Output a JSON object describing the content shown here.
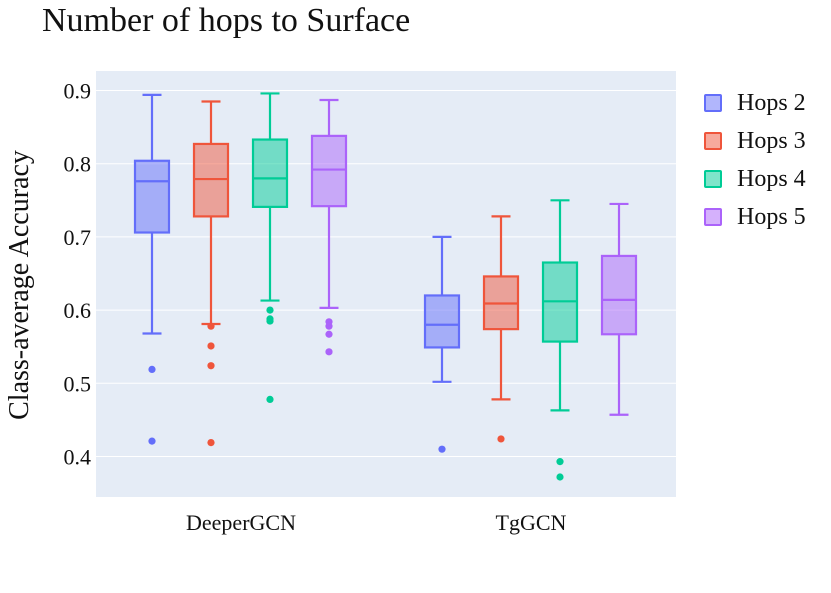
{
  "chart_data": {
    "type": "box",
    "title": "Number of hops to Surface",
    "xlabel": "",
    "ylabel": "Class-average Accuracy",
    "ylim": [
      0.34,
      0.92
    ],
    "yticks": [
      0.4,
      0.5,
      0.6,
      0.7,
      0.8,
      0.9
    ],
    "ytick_labels": [
      "0.4",
      "0.5",
      "0.6",
      "0.7",
      "0.8",
      "0.9"
    ],
    "categories": [
      "DeeperGCN",
      "TgGCN"
    ],
    "legend_position": "right",
    "series": [
      {
        "name": "Hops 2",
        "color": "#636efa",
        "boxes": [
          {
            "category": "DeeperGCN",
            "lower_fence": 0.568,
            "q1": 0.706,
            "median": 0.776,
            "q3": 0.804,
            "upper_fence": 0.894,
            "outliers": [
              0.519,
              0.421
            ]
          },
          {
            "category": "TgGCN",
            "lower_fence": 0.502,
            "q1": 0.549,
            "median": 0.58,
            "q3": 0.62,
            "upper_fence": 0.7,
            "outliers": [
              0.41
            ]
          }
        ]
      },
      {
        "name": "Hops 3",
        "color": "#ef553b",
        "boxes": [
          {
            "category": "DeeperGCN",
            "lower_fence": 0.581,
            "q1": 0.728,
            "median": 0.779,
            "q3": 0.827,
            "upper_fence": 0.885,
            "outliers": [
              0.578,
              0.551,
              0.524,
              0.419
            ]
          },
          {
            "category": "TgGCN",
            "lower_fence": 0.478,
            "q1": 0.574,
            "median": 0.609,
            "q3": 0.646,
            "upper_fence": 0.728,
            "outliers": [
              0.424
            ]
          }
        ]
      },
      {
        "name": "Hops 4",
        "color": "#00cc96",
        "boxes": [
          {
            "category": "DeeperGCN",
            "lower_fence": 0.613,
            "q1": 0.741,
            "median": 0.78,
            "q3": 0.833,
            "upper_fence": 0.896,
            "outliers": [
              0.6,
              0.588,
              0.585,
              0.478
            ]
          },
          {
            "category": "TgGCN",
            "lower_fence": 0.463,
            "q1": 0.557,
            "median": 0.612,
            "q3": 0.665,
            "upper_fence": 0.75,
            "outliers": [
              0.393,
              0.372
            ]
          }
        ]
      },
      {
        "name": "Hops 5",
        "color": "#ab63fa",
        "boxes": [
          {
            "category": "DeeperGCN",
            "lower_fence": 0.603,
            "q1": 0.742,
            "median": 0.792,
            "q3": 0.838,
            "upper_fence": 0.887,
            "outliers": [
              0.584,
              0.578,
              0.567,
              0.543
            ]
          },
          {
            "category": "TgGCN",
            "lower_fence": 0.457,
            "q1": 0.567,
            "median": 0.614,
            "q3": 0.674,
            "upper_fence": 0.745,
            "outliers": []
          }
        ]
      }
    ]
  }
}
